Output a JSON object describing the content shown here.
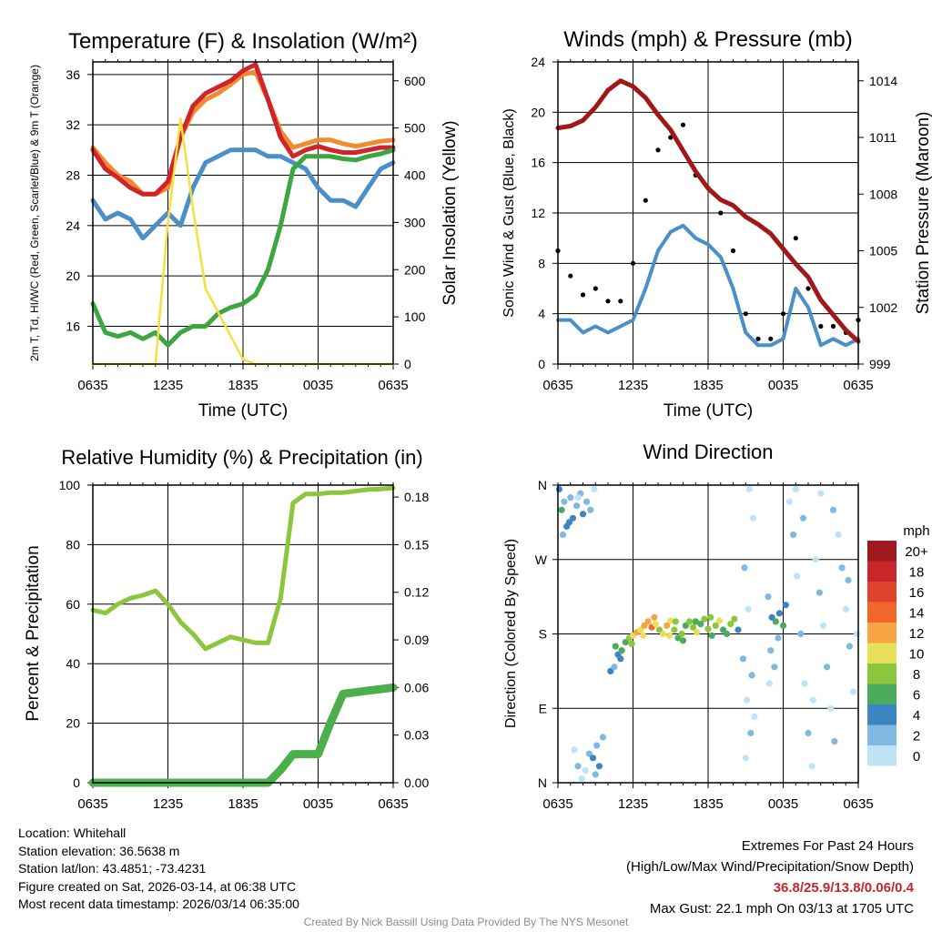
{
  "chart_data": [
    {
      "id": "temp",
      "type": "line",
      "title": "Temperature (F) & Insolation (W/m²)",
      "xlabel": "Time (UTC)",
      "ylabel_left": "2m T, Td, HI/WC (Red, Green, Scarlet/Blue) & 9m T (Orange)",
      "ylabel_right": "Solar Insolation (Yellow)",
      "x_ticks": [
        "0635",
        "1235",
        "1835",
        "0035",
        "0635"
      ],
      "ylim_left": [
        13,
        37
      ],
      "y_ticks_left": [
        16,
        20,
        24,
        28,
        32,
        36
      ],
      "ylim_right": [
        0,
        640
      ],
      "y_ticks_right": [
        0,
        100,
        200,
        300,
        400,
        500,
        600
      ],
      "x_hours": [
        0,
        1,
        2,
        3,
        4,
        5,
        6,
        7,
        8,
        9,
        10,
        11,
        12,
        13,
        14,
        15,
        16,
        17,
        18,
        19,
        20,
        21,
        22,
        23,
        24
      ],
      "series": [
        {
          "name": "Wind Chill",
          "color": "#4a90c8",
          "axis": "left",
          "values": [
            26,
            24.5,
            25,
            24.5,
            23,
            24,
            25,
            24,
            27,
            29,
            29.5,
            30,
            30,
            30,
            29.5,
            29.5,
            29,
            28.5,
            27,
            26,
            26,
            25.5,
            27,
            28.5,
            29
          ]
        },
        {
          "name": "9m T",
          "color": "#f28a30",
          "axis": "left",
          "values": [
            30.2,
            29,
            28,
            27.5,
            26.5,
            26.5,
            27,
            31,
            33,
            34,
            34.5,
            35.2,
            36,
            36.2,
            34,
            31.5,
            30.2,
            30.5,
            30.8,
            30.8,
            30.5,
            30.3,
            30.5,
            30.7,
            30.8
          ]
        },
        {
          "name": "2m T",
          "color": "#d1242a",
          "axis": "left",
          "values": [
            30,
            28.5,
            27.8,
            27,
            26.5,
            26.5,
            27.5,
            31,
            33.5,
            34.5,
            35,
            35.5,
            36.3,
            36.8,
            34,
            31,
            29.5,
            30,
            30.3,
            30,
            29.8,
            29.8,
            30,
            30.2,
            30.2
          ]
        },
        {
          "name": "Dewpoint",
          "color": "#3ca640",
          "axis": "left",
          "values": [
            17.8,
            15.5,
            15.2,
            15.5,
            15,
            15.5,
            14.5,
            15.5,
            16,
            16,
            17,
            17.5,
            17.8,
            18.5,
            20.5,
            24,
            28.5,
            29.5,
            29.5,
            29.5,
            29.3,
            29.2,
            29.5,
            29.7,
            30
          ]
        },
        {
          "name": "Solar Insolation",
          "color": "#f5e03c",
          "axis": "right",
          "values": [
            0,
            0,
            0,
            0,
            0,
            0,
            300,
            520,
            330,
            160,
            110,
            60,
            10,
            0,
            0,
            0,
            0,
            0,
            0,
            0,
            0,
            0,
            0,
            0,
            0
          ]
        }
      ]
    },
    {
      "id": "winds",
      "type": "line",
      "title": "Winds (mph) & Pressure (mb)",
      "xlabel": "Time (UTC)",
      "ylabel_left": "Sonic Wind & Gust (Blue, Black)",
      "ylabel_right": "Station Pressure (Maroon)",
      "x_ticks": [
        "0635",
        "1235",
        "1835",
        "0035",
        "0635"
      ],
      "ylim_left": [
        0,
        24
      ],
      "y_ticks_left": [
        0,
        4,
        8,
        12,
        16,
        20,
        24
      ],
      "ylim_right": [
        999,
        1015
      ],
      "y_ticks_right": [
        999,
        1002,
        1005,
        1008,
        1011,
        1014
      ],
      "x_hours": [
        0,
        1,
        2,
        3,
        4,
        5,
        6,
        7,
        8,
        9,
        10,
        11,
        12,
        13,
        14,
        15,
        16,
        17,
        18,
        19,
        20,
        21,
        22,
        23,
        24
      ],
      "series": [
        {
          "name": "Sonic Wind",
          "color": "#4a90c8",
          "axis": "left",
          "values": [
            3.5,
            3.5,
            2.5,
            3,
            2.5,
            3,
            3.5,
            6,
            9,
            10.5,
            11,
            10,
            9.5,
            8.5,
            6,
            2.5,
            1.5,
            1.5,
            2,
            6,
            4.5,
            1.5,
            2,
            1.5,
            2
          ]
        },
        {
          "name": "Gust",
          "color": "#000000",
          "axis": "left",
          "values": [
            9,
            7,
            5.5,
            6,
            5,
            5,
            8,
            13,
            17,
            18,
            19,
            15,
            14,
            12,
            9,
            4,
            2,
            2,
            4,
            10,
            6,
            3,
            3,
            2.5,
            3.5
          ]
        },
        {
          "name": "Station Pressure",
          "color": "#a01818",
          "axis": "right",
          "values": [
            1011.5,
            1011.6,
            1011.9,
            1012.6,
            1013.5,
            1014.0,
            1013.7,
            1013.1,
            1012.2,
            1011.4,
            1010.3,
            1009.2,
            1008.3,
            1007.7,
            1007.4,
            1006.8,
            1006.4,
            1005.9,
            1005.1,
            1004.3,
            1003.6,
            1002.4,
            1001.6,
            1000.8,
            1000.2
          ]
        }
      ]
    },
    {
      "id": "rh",
      "type": "line",
      "title": "Relative Humidity (%) & Precipitation (in)",
      "xlabel": "",
      "ylabel_left": "Percent & Precipitation",
      "ylabel_right": "",
      "x_ticks": [
        "0635",
        "1235",
        "1835",
        "0035",
        "0635"
      ],
      "ylim_left": [
        0,
        100
      ],
      "y_ticks_left": [
        0,
        20,
        40,
        60,
        80,
        100
      ],
      "ylim_right": [
        0,
        0.1875
      ],
      "y_ticks_right": [
        "0.00",
        "0.03",
        "0.06",
        "0.09",
        "0.12",
        "0.15",
        "0.18"
      ],
      "x_hours": [
        0,
        1,
        2,
        3,
        4,
        5,
        6,
        7,
        8,
        9,
        10,
        11,
        12,
        13,
        14,
        15,
        16,
        17,
        18,
        19,
        20,
        21,
        22,
        23,
        24
      ],
      "series": [
        {
          "name": "Relative Humidity",
          "color": "#8cc63c",
          "axis": "left",
          "values": [
            58,
            57,
            60,
            62,
            63,
            64.5,
            60,
            54,
            50,
            45,
            47,
            49,
            48,
            47,
            47,
            62,
            94,
            97,
            97,
            97.5,
            97.5,
            98,
            98.5,
            98.7,
            99
          ]
        },
        {
          "name": "Precipitation",
          "color": "#4cb04a",
          "axis": "right",
          "values": [
            0,
            0,
            0,
            0,
            0,
            0,
            0,
            0,
            0,
            0,
            0,
            0,
            0,
            0,
            0,
            0.008,
            0.018,
            0.018,
            0.018,
            0.038,
            0.056,
            0.057,
            0.058,
            0.059,
            0.06
          ]
        }
      ]
    },
    {
      "id": "wdir",
      "type": "scatter",
      "title": "Wind Direction",
      "xlabel": "",
      "ylabel_left": "Direction (Colored By Speed)",
      "x_ticks": [
        "0635",
        "1235",
        "1835",
        "0035",
        "0635"
      ],
      "y_ticks_left": [
        "N",
        "E",
        "S",
        "W",
        "N"
      ],
      "ylim_left": [
        0,
        360
      ],
      "legend_title": "mph",
      "legend_labels": [
        "20+",
        "18",
        "16",
        "14",
        "12",
        "10",
        "8",
        "6",
        "4",
        "2",
        "0"
      ],
      "legend_colors": [
        "#9e1a1f",
        "#c8262b",
        "#e0432b",
        "#f2672a",
        "#f7a445",
        "#e8e05a",
        "#8cc63c",
        "#4caa5c",
        "#3d85c0",
        "#7fb8e0",
        "#bfe3f5"
      ],
      "points": [
        {
          "h": 0.1,
          "d": 355,
          "s": 4
        },
        {
          "h": 0.3,
          "d": 330,
          "s": 6
        },
        {
          "h": 0.5,
          "d": 340,
          "s": 3
        },
        {
          "h": 0.7,
          "d": 310,
          "s": 4
        },
        {
          "h": 1.0,
          "d": 345,
          "s": 2
        },
        {
          "h": 1.2,
          "d": 320,
          "s": 5
        },
        {
          "h": 1.5,
          "d": 335,
          "s": 3
        },
        {
          "h": 1.8,
          "d": 350,
          "s": 2
        },
        {
          "h": 2.0,
          "d": 325,
          "s": 4
        },
        {
          "h": 2.3,
          "d": 340,
          "s": 3
        },
        {
          "h": 0.4,
          "d": 300,
          "s": 3
        },
        {
          "h": 0.9,
          "d": 315,
          "s": 4
        },
        {
          "h": 1.6,
          "d": 345,
          "s": 1
        },
        {
          "h": 2.6,
          "d": 330,
          "s": 2
        },
        {
          "h": 2.9,
          "d": 355,
          "s": 1
        },
        {
          "h": 1.3,
          "d": 40,
          "s": 1
        },
        {
          "h": 1.6,
          "d": 20,
          "s": 2
        },
        {
          "h": 1.9,
          "d": 5,
          "s": 1
        },
        {
          "h": 2.2,
          "d": 15,
          "s": 1
        },
        {
          "h": 2.5,
          "d": 35,
          "s": 3
        },
        {
          "h": 2.8,
          "d": 30,
          "s": 4
        },
        {
          "h": 3.1,
          "d": 45,
          "s": 3
        },
        {
          "h": 3.3,
          "d": 20,
          "s": 4
        },
        {
          "h": 3.6,
          "d": 55,
          "s": 2
        },
        {
          "h": 3.0,
          "d": 10,
          "s": 3
        },
        {
          "h": 4.2,
          "d": 135,
          "s": 4
        },
        {
          "h": 4.5,
          "d": 140,
          "s": 3
        },
        {
          "h": 4.8,
          "d": 155,
          "s": 5
        },
        {
          "h": 5.1,
          "d": 160,
          "s": 6
        },
        {
          "h": 5.4,
          "d": 170,
          "s": 7
        },
        {
          "h": 5.7,
          "d": 175,
          "s": 8
        },
        {
          "h": 6.0,
          "d": 178,
          "s": 10
        },
        {
          "h": 6.3,
          "d": 182,
          "s": 12
        },
        {
          "h": 6.6,
          "d": 185,
          "s": 11
        },
        {
          "h": 6.9,
          "d": 190,
          "s": 13
        },
        {
          "h": 7.2,
          "d": 195,
          "s": 12
        },
        {
          "h": 7.5,
          "d": 188,
          "s": 14
        },
        {
          "h": 7.8,
          "d": 192,
          "s": 10
        },
        {
          "h": 8.1,
          "d": 185,
          "s": 9
        },
        {
          "h": 8.4,
          "d": 180,
          "s": 11
        },
        {
          "h": 8.7,
          "d": 190,
          "s": 12
        },
        {
          "h": 9.0,
          "d": 196,
          "s": 10
        },
        {
          "h": 9.3,
          "d": 185,
          "s": 9
        },
        {
          "h": 9.6,
          "d": 175,
          "s": 7
        },
        {
          "h": 9.9,
          "d": 180,
          "s": 8
        },
        {
          "h": 10.2,
          "d": 190,
          "s": 6
        },
        {
          "h": 10.5,
          "d": 195,
          "s": 9
        },
        {
          "h": 10.8,
          "d": 188,
          "s": 8
        },
        {
          "h": 11.1,
          "d": 182,
          "s": 10
        },
        {
          "h": 11.4,
          "d": 192,
          "s": 7
        },
        {
          "h": 11.7,
          "d": 198,
          "s": 8
        },
        {
          "h": 12.0,
          "d": 186,
          "s": 9
        },
        {
          "h": 12.3,
          "d": 178,
          "s": 6
        },
        {
          "h": 12.6,
          "d": 190,
          "s": 8
        },
        {
          "h": 12.9,
          "d": 196,
          "s": 10
        },
        {
          "h": 13.2,
          "d": 185,
          "s": 7
        },
        {
          "h": 13.5,
          "d": 180,
          "s": 6
        },
        {
          "h": 13.8,
          "d": 192,
          "s": 8
        },
        {
          "h": 14.1,
          "d": 198,
          "s": 9
        },
        {
          "h": 14.4,
          "d": 185,
          "s": 5
        },
        {
          "h": 4.6,
          "d": 165,
          "s": 6
        },
        {
          "h": 5.0,
          "d": 150,
          "s": 4
        },
        {
          "h": 5.9,
          "d": 168,
          "s": 9
        },
        {
          "h": 6.8,
          "d": 178,
          "s": 11
        },
        {
          "h": 7.7,
          "d": 200,
          "s": 13
        },
        {
          "h": 8.9,
          "d": 178,
          "s": 10
        },
        {
          "h": 9.4,
          "d": 195,
          "s": 8
        },
        {
          "h": 10.0,
          "d": 172,
          "s": 6
        },
        {
          "h": 11.0,
          "d": 195,
          "s": 7
        },
        {
          "h": 12.2,
          "d": 200,
          "s": 9
        },
        {
          "h": 14.8,
          "d": 150,
          "s": 2
        },
        {
          "h": 15.1,
          "d": 100,
          "s": 1
        },
        {
          "h": 15.4,
          "d": 60,
          "s": 2
        },
        {
          "h": 15.0,
          "d": 30,
          "s": 1
        },
        {
          "h": 15.3,
          "d": 355,
          "s": 1
        },
        {
          "h": 15.6,
          "d": 320,
          "s": 1
        },
        {
          "h": 14.9,
          "d": 260,
          "s": 2
        },
        {
          "h": 15.2,
          "d": 210,
          "s": 1
        },
        {
          "h": 15.5,
          "d": 130,
          "s": 2
        },
        {
          "h": 15.7,
          "d": 80,
          "s": 1
        },
        {
          "h": 16.8,
          "d": 225,
          "s": 2
        },
        {
          "h": 17.1,
          "d": 200,
          "s": 5
        },
        {
          "h": 17.4,
          "d": 195,
          "s": 7
        },
        {
          "h": 17.7,
          "d": 205,
          "s": 4
        },
        {
          "h": 18.0,
          "d": 190,
          "s": 6
        },
        {
          "h": 17.0,
          "d": 160,
          "s": 2
        },
        {
          "h": 17.3,
          "d": 140,
          "s": 3
        },
        {
          "h": 16.9,
          "d": 120,
          "s": 1
        },
        {
          "h": 17.6,
          "d": 175,
          "s": 3
        },
        {
          "h": 18.2,
          "d": 215,
          "s": 4
        },
        {
          "h": 18.5,
          "d": 340,
          "s": 1
        },
        {
          "h": 18.8,
          "d": 300,
          "s": 2
        },
        {
          "h": 19.1,
          "d": 250,
          "s": 1
        },
        {
          "h": 19.4,
          "d": 180,
          "s": 2
        },
        {
          "h": 19.7,
          "d": 120,
          "s": 1
        },
        {
          "h": 20.0,
          "d": 60,
          "s": 2
        },
        {
          "h": 20.3,
          "d": 20,
          "s": 1
        },
        {
          "h": 19.0,
          "d": 355,
          "s": 1
        },
        {
          "h": 19.6,
          "d": 320,
          "s": 2
        },
        {
          "h": 20.6,
          "d": 270,
          "s": 1
        },
        {
          "h": 20.9,
          "d": 230,
          "s": 2
        },
        {
          "h": 21.2,
          "d": 190,
          "s": 1
        },
        {
          "h": 21.5,
          "d": 140,
          "s": 2
        },
        {
          "h": 21.8,
          "d": 90,
          "s": 1
        },
        {
          "h": 22.1,
          "d": 50,
          "s": 2
        },
        {
          "h": 22.4,
          "d": 300,
          "s": 1
        },
        {
          "h": 22.7,
          "d": 260,
          "s": 2
        },
        {
          "h": 23.0,
          "d": 210,
          "s": 1
        },
        {
          "h": 23.3,
          "d": 165,
          "s": 2
        },
        {
          "h": 23.6,
          "d": 110,
          "s": 1
        },
        {
          "h": 23.9,
          "d": 180,
          "s": 1
        },
        {
          "h": 21.0,
          "d": 350,
          "s": 1
        },
        {
          "h": 22.0,
          "d": 330,
          "s": 2
        },
        {
          "h": 23.2,
          "d": 245,
          "s": 2
        },
        {
          "h": 20.4,
          "d": 100,
          "s": 1
        }
      ]
    }
  ],
  "footer": {
    "location": "Location: Whitehall",
    "elevation": "Station elevation: 36.5638 m",
    "latlon": "Station lat/lon: 43.4851; -73.4231",
    "created": "Figure created on Sat, 2026-03-14, at 06:38 UTC",
    "recent": "Most recent data timestamp: 2026/03/14 06:35:00",
    "extremes_title": "Extremes For Past 24 Hours",
    "extremes_subtitle": "(High/Low/Max Wind/Precipitation/Snow Depth)",
    "extremes_values": "36.8/25.9/13.8/0.06/0.4",
    "max_gust": "Max Gust: 22.1 mph On 03/13 at 1705 UTC",
    "credit": "Created By Nick Bassill Using Data Provided By The NYS Mesonet"
  }
}
